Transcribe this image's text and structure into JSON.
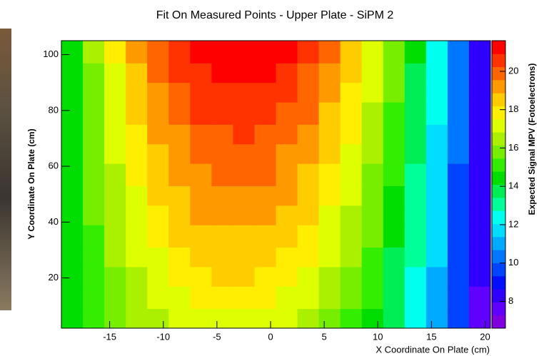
{
  "chart_data": {
    "type": "heatmap",
    "title": "Fit On Measured Points - Upper Plate - SiPM 2",
    "x_label": "X Coordinate On Plate (cm)",
    "y_label": "Y Coordinate On Plate (cm)",
    "z_label": "Expected Signal MPV (Fotoelectrons)",
    "xbins": [
      -19.5,
      -17.5,
      -15.5,
      -13.5,
      -11.5,
      -9.5,
      -7.5,
      -5.5,
      -3.5,
      -1.5,
      0.5,
      2.5,
      4.5,
      6.5,
      8.5,
      10.5,
      12.5,
      14.5,
      16.5,
      18.5,
      20.5
    ],
    "ybins": [
      2,
      9,
      17,
      24,
      31,
      39,
      46,
      53,
      61,
      68,
      75,
      83,
      90,
      97,
      105
    ],
    "values": [
      [
        14.2,
        15.0,
        15.7,
        16.3,
        16.7,
        17.1,
        17.3,
        17.5,
        17.5,
        17.4,
        17.1,
        16.7,
        16.1,
        15.4,
        14.6,
        13.5,
        12.4,
        11.0,
        9.6,
        7.9
      ],
      [
        14.2,
        15.1,
        15.8,
        16.5,
        17.0,
        17.3,
        17.6,
        17.8,
        17.8,
        17.7,
        17.4,
        17.0,
        16.4,
        15.7,
        14.8,
        13.7,
        12.5,
        11.1,
        9.6,
        7.9
      ],
      [
        14.3,
        15.2,
        16.0,
        16.7,
        17.3,
        17.7,
        18.0,
        18.2,
        18.2,
        18.1,
        17.8,
        17.3,
        16.7,
        16.0,
        15.0,
        14.0,
        12.7,
        11.3,
        9.7,
        8.0
      ],
      [
        14.3,
        15.3,
        16.2,
        16.9,
        17.5,
        18.0,
        18.3,
        18.5,
        18.5,
        18.4,
        18.1,
        17.6,
        17.0,
        16.2,
        15.3,
        14.1,
        12.8,
        11.4,
        9.8,
        8.0
      ],
      [
        14.3,
        15.4,
        16.3,
        17.1,
        17.7,
        18.2,
        18.6,
        18.8,
        18.8,
        18.7,
        18.4,
        17.9,
        17.3,
        16.4,
        15.5,
        14.3,
        13.0,
        11.5,
        9.8,
        8.0
      ],
      [
        14.3,
        15.5,
        16.4,
        17.3,
        18.0,
        18.5,
        18.9,
        19.1,
        19.1,
        19.0,
        18.7,
        18.2,
        17.5,
        16.7,
        15.7,
        14.5,
        13.1,
        11.6,
        9.9,
        8.0
      ],
      [
        14.3,
        15.6,
        16.6,
        17.5,
        18.2,
        18.8,
        19.1,
        19.4,
        19.4,
        19.3,
        19.0,
        18.4,
        17.8,
        16.9,
        15.9,
        14.7,
        13.3,
        11.7,
        10.0,
        8.0
      ],
      [
        14.3,
        15.7,
        16.7,
        17.7,
        18.4,
        19.0,
        19.4,
        19.6,
        19.7,
        19.6,
        19.2,
        18.7,
        18.0,
        17.2,
        16.1,
        14.9,
        13.4,
        11.8,
        10.0,
        8.0
      ],
      [
        14.4,
        15.7,
        16.9,
        17.9,
        18.7,
        19.3,
        19.7,
        19.9,
        20.0,
        19.9,
        19.5,
        19.0,
        18.3,
        17.4,
        16.3,
        15.0,
        13.6,
        11.9,
        10.1,
        8.0
      ],
      [
        14.4,
        15.8,
        17.0,
        18.1,
        18.9,
        19.5,
        20.0,
        20.2,
        20.3,
        20.1,
        19.8,
        19.3,
        18.5,
        17.6,
        16.5,
        15.2,
        13.7,
        12.0,
        10.1,
        8.1
      ],
      [
        14.4,
        15.9,
        17.2,
        18.3,
        19.1,
        19.8,
        20.3,
        20.5,
        20.6,
        20.4,
        20.1,
        19.6,
        18.8,
        17.9,
        16.7,
        15.4,
        13.9,
        12.1,
        10.2,
        8.1
      ],
      [
        14.4,
        16.0,
        17.3,
        18.5,
        19.4,
        20.1,
        20.6,
        20.8,
        20.9,
        20.7,
        20.4,
        19.8,
        19.1,
        18.1,
        16.9,
        15.6,
        14.0,
        12.2,
        10.3,
        8.1
      ],
      [
        14.4,
        16.1,
        17.5,
        18.7,
        19.6,
        20.3,
        20.9,
        21.1,
        21.2,
        21.0,
        20.7,
        20.1,
        19.3,
        18.4,
        17.2,
        15.8,
        14.1,
        12.3,
        10.3,
        8.1
      ],
      [
        14.5,
        16.2,
        17.6,
        18.9,
        19.9,
        20.7,
        21.2,
        21.5,
        21.6,
        21.4,
        21.1,
        20.5,
        19.7,
        18.7,
        17.4,
        16.0,
        14.3,
        12.5,
        10.4,
        8.1
      ]
    ],
    "xlim": [
      -19.5,
      20.5
    ],
    "xticks": [
      -15,
      -10,
      -5,
      0,
      5,
      10,
      15,
      20
    ],
    "ylim": [
      2,
      105
    ],
    "yticks": [
      20,
      40,
      60,
      80,
      100
    ],
    "zlim": [
      6.6,
      21.6
    ],
    "zticks": [
      8,
      10,
      12,
      14,
      16,
      18,
      20
    ],
    "palette": [
      "#8000e0",
      "#6000ff",
      "#3000ff",
      "#0010ff",
      "#0044ff",
      "#0077ff",
      "#00aaff",
      "#00ddff",
      "#00ffee",
      "#00ff99",
      "#00ee55",
      "#00dd00",
      "#33ee00",
      "#77ee00",
      "#aaf000",
      "#ddff00",
      "#ffee00",
      "#ffcc00",
      "#ff9900",
      "#ff6600",
      "#ff3300",
      "#ff0000"
    ]
  }
}
